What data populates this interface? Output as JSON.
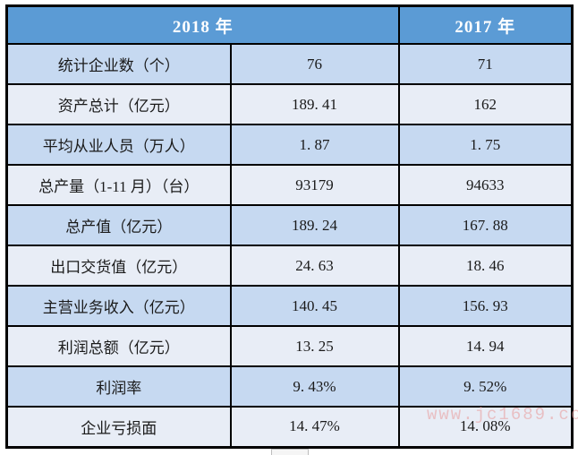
{
  "table": {
    "header": {
      "col_2018": "2018 年",
      "col_2017": "2017 年"
    },
    "rows": [
      {
        "label": "统计企业数（个）",
        "v2018": "76",
        "v2017": "71"
      },
      {
        "label": "资产总计（亿元）",
        "v2018": "189. 41",
        "v2017": "162"
      },
      {
        "label": "平均从业人员（万人）",
        "v2018": "1. 87",
        "v2017": "1. 75"
      },
      {
        "label": "总产量（1-11 月）（台）",
        "v2018": "93179",
        "v2017": "94633"
      },
      {
        "label": "总产值（亿元）",
        "v2018": "189. 24",
        "v2017": "167. 88"
      },
      {
        "label": "出口交货值（亿元）",
        "v2018": "24. 63",
        "v2017": "18. 46"
      },
      {
        "label": "主营业务收入（亿元）",
        "v2018": "140. 45",
        "v2017": "156. 93"
      },
      {
        "label": "利润总额（亿元）",
        "v2018": "13. 25",
        "v2017": "14. 94"
      },
      {
        "label": "利润率",
        "v2018": "9. 43%",
        "v2017": "9. 52%"
      },
      {
        "label": "企业亏损面",
        "v2018": "14. 47%",
        "v2017": "14. 08%"
      }
    ]
  },
  "watermark": {
    "text": "www.jc1689.com"
  },
  "colors": {
    "header_bg": "#5b9bd5",
    "header_text": "#ffffff",
    "row_alt_blue": "#c6d9f1",
    "row_alt_light": "#e8edf6",
    "border": "#000000",
    "watermark": "#e89b9b"
  }
}
